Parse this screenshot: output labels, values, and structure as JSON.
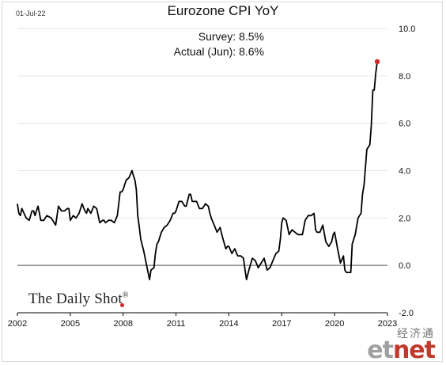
{
  "date_stamp": "01-Jul-22",
  "notes": {
    "survey": "Survey:  8.5%",
    "actual": "Actual (Jun):  8.6%"
  },
  "brand": "The Daily Shot",
  "brand_mark": "®",
  "watermark": {
    "chinese": "经济通",
    "et": "et",
    "net": "net"
  },
  "colors": {
    "line": "#000000",
    "grid": "#e6e6e6",
    "zero_line": "#555555",
    "marker": "#d62728"
  },
  "chart_data": {
    "type": "line",
    "title": "Eurozone CPI YoY",
    "xlabel": "",
    "ylabel": "",
    "xlim": [
      2002,
      2023
    ],
    "ylim": [
      -2,
      10
    ],
    "y_axis_side": "right",
    "x_ticks": [
      2002,
      2005,
      2008,
      2011,
      2014,
      2017,
      2020,
      2023
    ],
    "y_ticks": [
      -2,
      0,
      2,
      4,
      6,
      8,
      10
    ],
    "y_tick_labels": [
      "-2.0",
      "0.0",
      "2.0",
      "4.0",
      "6.0",
      "8.0",
      "10.0"
    ],
    "grid": "horizontal",
    "last_point_marker": true,
    "series": [
      {
        "values": [
          [
            2002.0,
            2.6
          ],
          [
            2002.08,
            2.2
          ],
          [
            2002.17,
            2.1
          ],
          [
            2002.25,
            2.4
          ],
          [
            2002.5,
            2.0
          ],
          [
            2002.67,
            1.9
          ],
          [
            2002.83,
            2.3
          ],
          [
            2002.92,
            2.3
          ],
          [
            2003.0,
            2.1
          ],
          [
            2003.08,
            2.3
          ],
          [
            2003.17,
            2.5
          ],
          [
            2003.33,
            1.9
          ],
          [
            2003.5,
            1.9
          ],
          [
            2003.67,
            2.1
          ],
          [
            2003.92,
            2.0
          ],
          [
            2004.0,
            1.9
          ],
          [
            2004.17,
            1.7
          ],
          [
            2004.33,
            2.5
          ],
          [
            2004.5,
            2.3
          ],
          [
            2004.67,
            2.3
          ],
          [
            2004.83,
            2.4
          ],
          [
            2004.92,
            2.4
          ],
          [
            2005.0,
            1.9
          ],
          [
            2005.17,
            2.1
          ],
          [
            2005.33,
            2.0
          ],
          [
            2005.5,
            2.2
          ],
          [
            2005.67,
            2.6
          ],
          [
            2005.83,
            2.3
          ],
          [
            2005.92,
            2.2
          ],
          [
            2006.0,
            2.4
          ],
          [
            2006.17,
            2.2
          ],
          [
            2006.33,
            2.5
          ],
          [
            2006.5,
            2.4
          ],
          [
            2006.67,
            1.8
          ],
          [
            2006.83,
            1.9
          ],
          [
            2006.92,
            1.9
          ],
          [
            2007.0,
            1.8
          ],
          [
            2007.17,
            1.9
          ],
          [
            2007.33,
            1.9
          ],
          [
            2007.5,
            1.8
          ],
          [
            2007.67,
            2.1
          ],
          [
            2007.83,
            3.1
          ],
          [
            2007.92,
            3.1
          ],
          [
            2008.0,
            3.2
          ],
          [
            2008.17,
            3.6
          ],
          [
            2008.33,
            3.7
          ],
          [
            2008.5,
            4.0
          ],
          [
            2008.58,
            3.8
          ],
          [
            2008.67,
            3.6
          ],
          [
            2008.75,
            3.2
          ],
          [
            2008.83,
            2.1
          ],
          [
            2008.92,
            1.6
          ],
          [
            2009.0,
            1.1
          ],
          [
            2009.17,
            0.6
          ],
          [
            2009.33,
            0.0
          ],
          [
            2009.5,
            -0.6
          ],
          [
            2009.58,
            -0.2
          ],
          [
            2009.75,
            -0.1
          ],
          [
            2009.83,
            0.5
          ],
          [
            2009.92,
            0.9
          ],
          [
            2010.0,
            1.0
          ],
          [
            2010.17,
            1.4
          ],
          [
            2010.33,
            1.6
          ],
          [
            2010.5,
            1.7
          ],
          [
            2010.67,
            1.9
          ],
          [
            2010.83,
            2.2
          ],
          [
            2010.92,
            2.2
          ],
          [
            2011.0,
            2.3
          ],
          [
            2011.17,
            2.7
          ],
          [
            2011.33,
            2.7
          ],
          [
            2011.5,
            2.5
          ],
          [
            2011.58,
            2.5
          ],
          [
            2011.75,
            3.0
          ],
          [
            2011.83,
            3.0
          ],
          [
            2011.92,
            2.7
          ],
          [
            2012.0,
            2.7
          ],
          [
            2012.17,
            2.7
          ],
          [
            2012.33,
            2.4
          ],
          [
            2012.5,
            2.4
          ],
          [
            2012.67,
            2.6
          ],
          [
            2012.83,
            2.5
          ],
          [
            2012.92,
            2.2
          ],
          [
            2013.0,
            2.0
          ],
          [
            2013.17,
            1.7
          ],
          [
            2013.33,
            1.4
          ],
          [
            2013.5,
            1.6
          ],
          [
            2013.67,
            1.1
          ],
          [
            2013.83,
            0.7
          ],
          [
            2013.92,
            0.8
          ],
          [
            2014.0,
            0.8
          ],
          [
            2014.17,
            0.5
          ],
          [
            2014.33,
            0.7
          ],
          [
            2014.5,
            0.4
          ],
          [
            2014.67,
            0.4
          ],
          [
            2014.83,
            0.3
          ],
          [
            2014.92,
            -0.2
          ],
          [
            2015.0,
            -0.6
          ],
          [
            2015.17,
            -0.1
          ],
          [
            2015.33,
            0.3
          ],
          [
            2015.5,
            0.2
          ],
          [
            2015.67,
            -0.1
          ],
          [
            2015.83,
            0.1
          ],
          [
            2015.92,
            0.2
          ],
          [
            2016.0,
            0.3
          ],
          [
            2016.17,
            -0.2
          ],
          [
            2016.33,
            -0.1
          ],
          [
            2016.5,
            0.2
          ],
          [
            2016.67,
            0.5
          ],
          [
            2016.83,
            0.6
          ],
          [
            2016.92,
            1.1
          ],
          [
            2017.0,
            1.8
          ],
          [
            2017.08,
            2.0
          ],
          [
            2017.25,
            1.9
          ],
          [
            2017.42,
            1.3
          ],
          [
            2017.58,
            1.5
          ],
          [
            2017.75,
            1.4
          ],
          [
            2017.92,
            1.3
          ],
          [
            2018.0,
            1.3
          ],
          [
            2018.17,
            1.3
          ],
          [
            2018.33,
            1.9
          ],
          [
            2018.5,
            2.1
          ],
          [
            2018.67,
            2.1
          ],
          [
            2018.83,
            2.2
          ],
          [
            2018.92,
            1.5
          ],
          [
            2019.0,
            1.4
          ],
          [
            2019.17,
            1.4
          ],
          [
            2019.33,
            1.7
          ],
          [
            2019.5,
            1.0
          ],
          [
            2019.67,
            0.8
          ],
          [
            2019.83,
            1.0
          ],
          [
            2019.92,
            1.3
          ],
          [
            2020.0,
            1.4
          ],
          [
            2020.17,
            0.7
          ],
          [
            2020.33,
            0.1
          ],
          [
            2020.5,
            0.4
          ],
          [
            2020.58,
            -0.2
          ],
          [
            2020.67,
            -0.3
          ],
          [
            2020.92,
            -0.3
          ],
          [
            2021.0,
            0.9
          ],
          [
            2021.17,
            1.3
          ],
          [
            2021.33,
            2.0
          ],
          [
            2021.5,
            2.2
          ],
          [
            2021.58,
            3.0
          ],
          [
            2021.67,
            3.4
          ],
          [
            2021.83,
            4.9
          ],
          [
            2021.92,
            5.0
          ],
          [
            2022.0,
            5.1
          ],
          [
            2022.08,
            5.9
          ],
          [
            2022.17,
            7.4
          ],
          [
            2022.25,
            7.4
          ],
          [
            2022.33,
            8.1
          ],
          [
            2022.42,
            8.6
          ]
        ]
      }
    ]
  }
}
